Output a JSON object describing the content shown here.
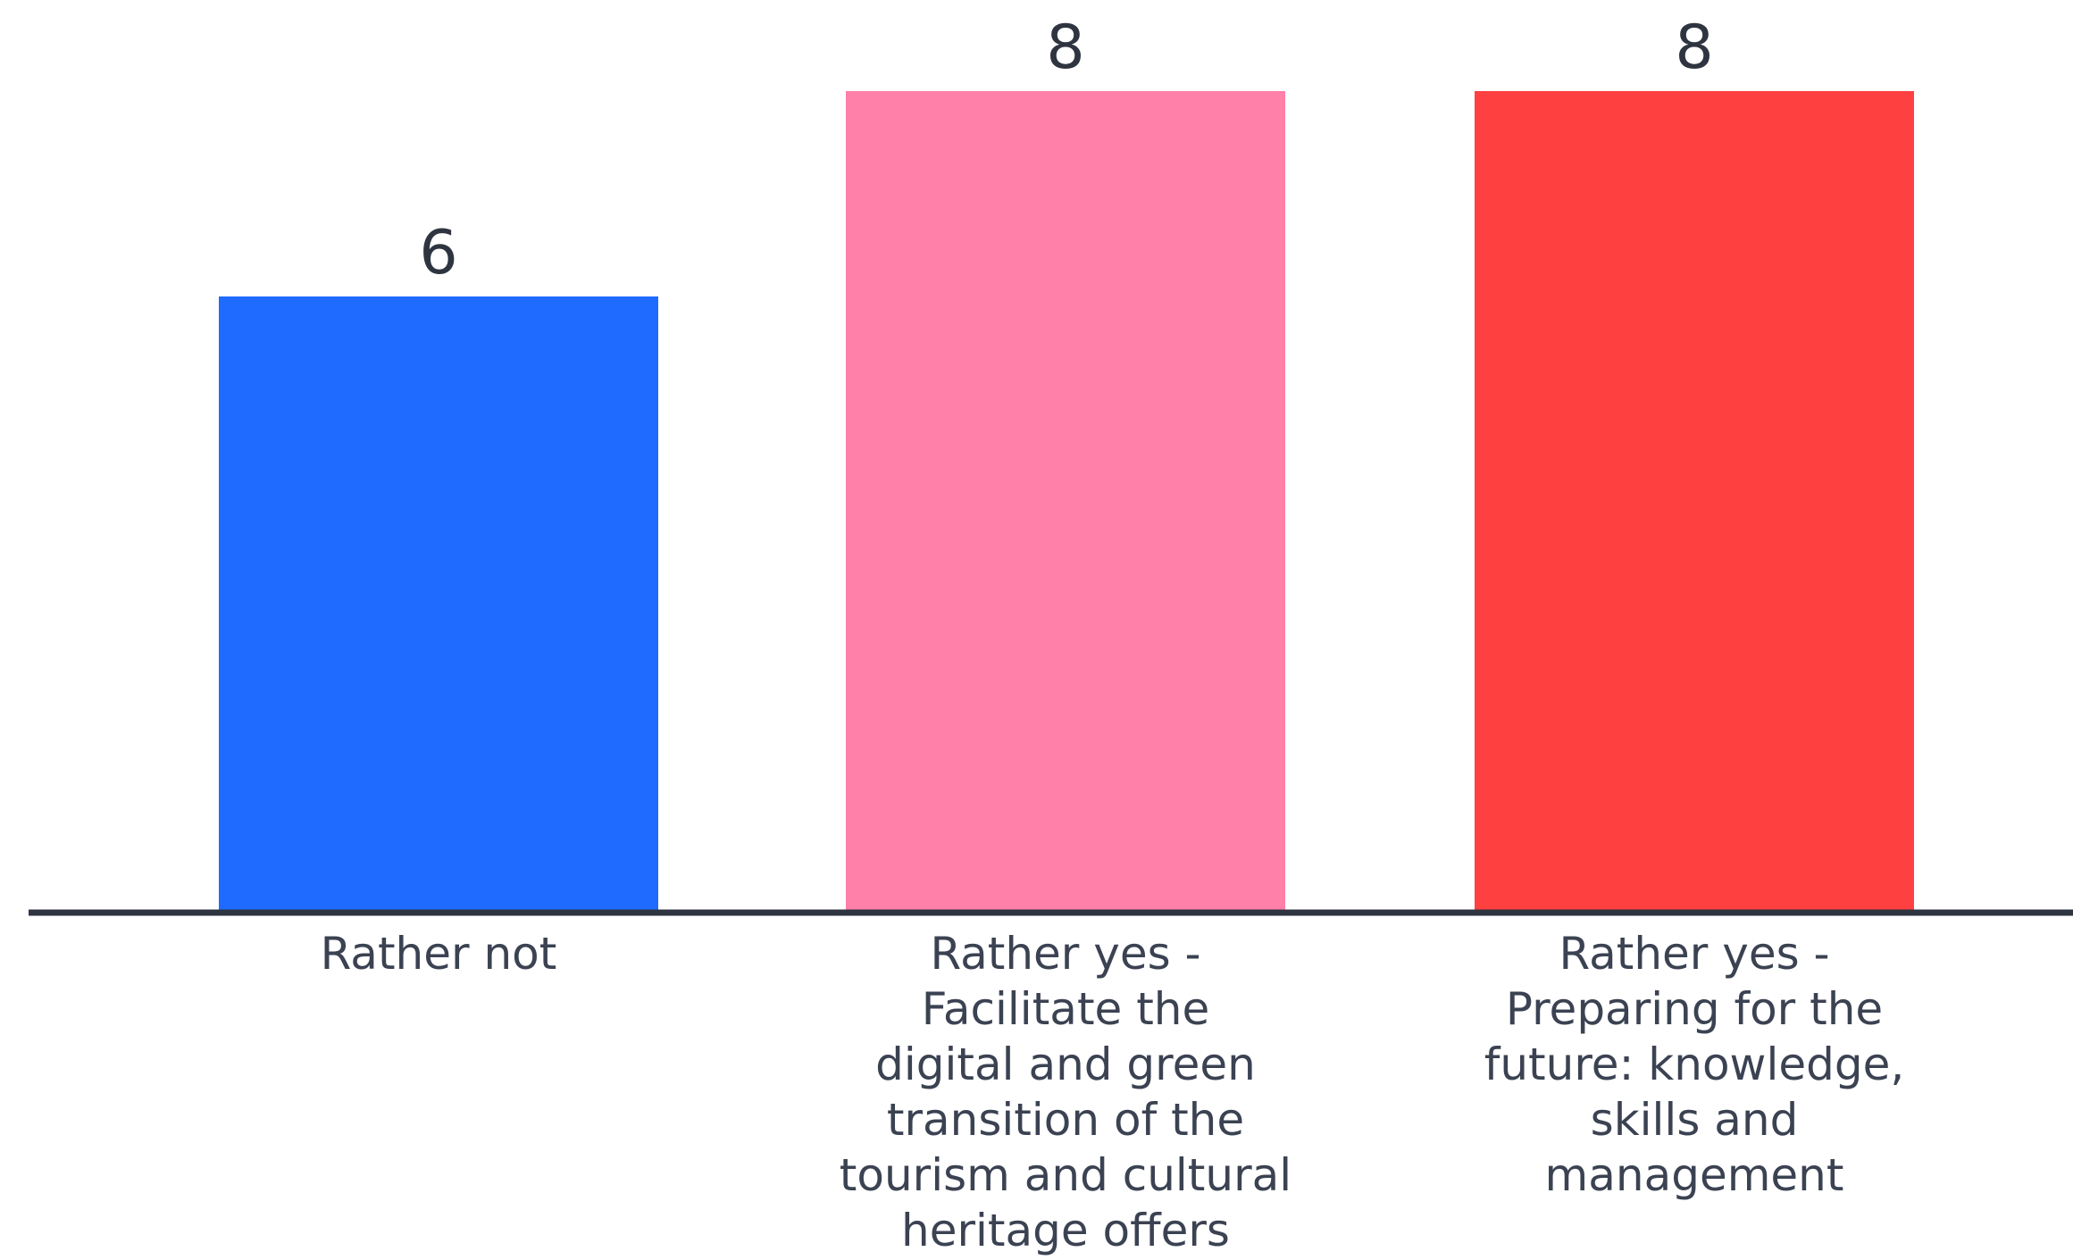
{
  "chart_data": {
    "type": "bar",
    "categories": [
      "Rather not",
      "Rather yes - Facilitate the digital and green transition of the tourism and cultural heritage offers",
      "Rather yes - Preparing for the future: knowledge, skills and management"
    ],
    "category_label_lines": [
      [
        "Rather not"
      ],
      [
        "Rather yes -",
        "Facilitate the",
        "digital and green",
        "transition of the",
        "tourism and cultural",
        "heritage offers"
      ],
      [
        "Rather yes -",
        "Preparing for the",
        "future: knowledge,",
        "skills and",
        "management"
      ]
    ],
    "values": [
      6,
      8,
      8
    ],
    "data_labels": [
      "6",
      "8",
      "8"
    ],
    "colors": [
      "#1f6bff",
      "#ff80a8",
      "#ff4040"
    ],
    "axis_color": "#2e3440",
    "title": "",
    "xlabel": "",
    "ylabel": "",
    "ylim": [
      0,
      8
    ],
    "grid": false,
    "legend": "none"
  }
}
